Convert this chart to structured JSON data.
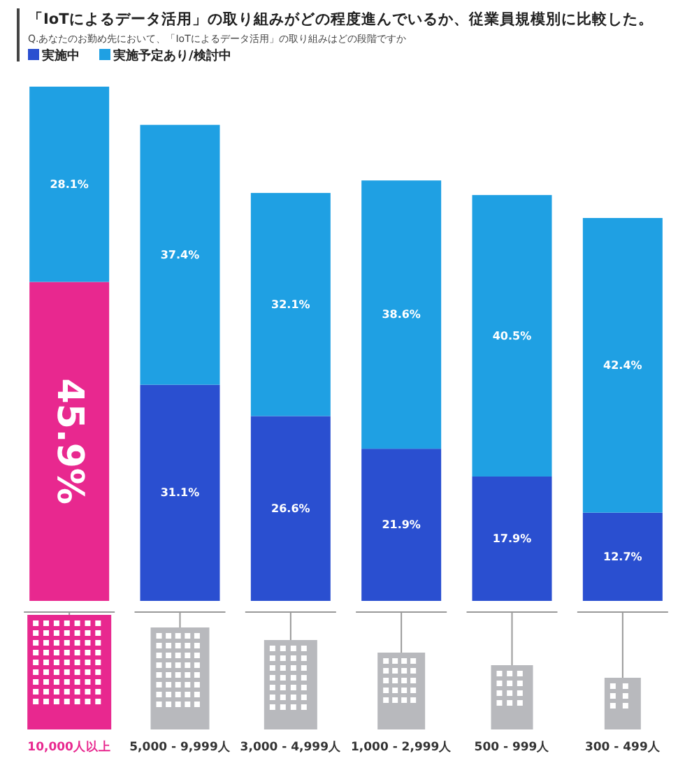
{
  "chart_data": {
    "type": "bar",
    "stacked": true,
    "title": "「IoTによるデータ活用」の取り組みがどの程度進んでいるか、従業員規模別に比較した。",
    "subtitle": "Q.あなたのお勤め先において、「IoTによるデータ活用」の取り組みはどの段階ですか",
    "categories": [
      "10,000人以上",
      "5,000 - 9,999人",
      "3,000 - 4,999人",
      "1,000 - 2,999人",
      "500 - 999人",
      "300 - 499人"
    ],
    "legend": "top left",
    "series": [
      {
        "name": "実施中",
        "color": "#2a4fd0",
        "colors": [
          "#e8288f",
          "#2a4fd0",
          "#2a4fd0",
          "#2a4fd0",
          "#2a4fd0",
          "#2a4fd0"
        ],
        "values": [
          45.9,
          31.1,
          26.6,
          21.9,
          17.9,
          12.7
        ],
        "value_labels": [
          "45.9%",
          "31.1%",
          "26.6%",
          "21.9%",
          "17.9%",
          "12.7%"
        ]
      },
      {
        "name": "実施予定あり/検討中",
        "color": "#1fa0e3",
        "values": [
          28.1,
          37.4,
          32.1,
          38.6,
          40.5,
          42.4
        ],
        "value_labels": [
          "28.1%",
          "37.4%",
          "32.1%",
          "38.6%",
          "40.5%",
          "42.4%"
        ]
      }
    ]
  }
}
